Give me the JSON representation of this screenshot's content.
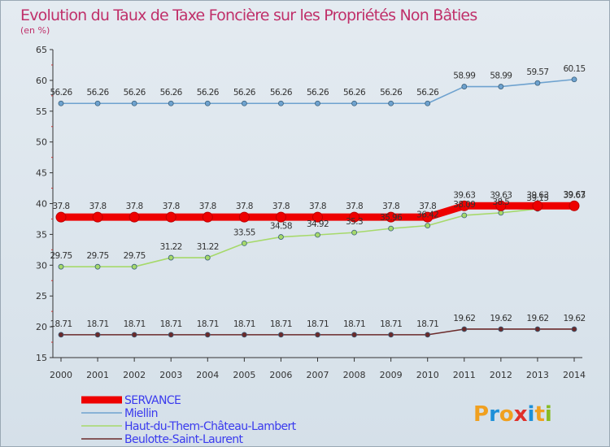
{
  "chart_data": {
    "type": "line",
    "title": "Evolution du Taux de Taxe Foncière sur les Propriétés Non Bâties",
    "subtitle": "(en %)",
    "xlabel": "",
    "ylabel": "",
    "ylim": [
      15,
      65
    ],
    "yticks": [
      15,
      20,
      25,
      30,
      35,
      40,
      45,
      50,
      55,
      60,
      65
    ],
    "grid": false,
    "legend_position": "bottom-left",
    "x": [
      "2000",
      "2001",
      "2002",
      "2003",
      "2004",
      "2005",
      "2006",
      "2007",
      "2008",
      "2009",
      "2010",
      "2011",
      "2012",
      "2013",
      "2014"
    ],
    "series": [
      {
        "name": "Miellin",
        "color": "#6ea2cf",
        "values": [
          56.26,
          56.26,
          56.26,
          56.26,
          56.26,
          56.26,
          56.26,
          56.26,
          56.26,
          56.26,
          56.26,
          58.99,
          58.99,
          59.57,
          60.15
        ],
        "labels": [
          "56.26",
          "56.26",
          "56.26",
          "56.26",
          "56.26",
          "56.26",
          "56.26",
          "56.26",
          "56.26",
          "56.26",
          "56.26",
          "58.99",
          "58.99",
          "59.57",
          "60.15"
        ]
      },
      {
        "name": "Haut-du-Them-Château-Lambert",
        "color": "#a6d96a",
        "values": [
          29.75,
          29.75,
          29.75,
          31.22,
          31.22,
          33.55,
          34.58,
          34.92,
          35.3,
          35.96,
          36.42,
          38.09,
          38.5,
          39.15,
          39.67
        ],
        "labels": [
          "29.75",
          "29.75",
          "29.75",
          "31.22",
          "31.22",
          "33.55",
          "34.58",
          "34.92",
          "35.3",
          "35.96",
          "36.42",
          "38.09",
          "38.5",
          "39.15",
          "39.67"
        ]
      },
      {
        "name": "Beulotte-Saint-Laurent",
        "color": "#6b2a2a",
        "values": [
          18.71,
          18.71,
          18.71,
          18.71,
          18.71,
          18.71,
          18.71,
          18.71,
          18.71,
          18.71,
          18.71,
          19.62,
          19.62,
          19.62,
          19.62
        ],
        "labels": [
          "18.71",
          "18.71",
          "18.71",
          "18.71",
          "18.71",
          "18.71",
          "18.71",
          "18.71",
          "18.71",
          "18.71",
          "18.71",
          "19.62",
          "19.62",
          "19.62",
          "19.62"
        ]
      },
      {
        "name": "SERVANCE",
        "color": "#ee0000",
        "values": [
          37.8,
          37.8,
          37.8,
          37.8,
          37.8,
          37.8,
          37.8,
          37.8,
          37.8,
          37.8,
          37.8,
          39.63,
          39.63,
          39.63,
          39.63
        ],
        "labels": [
          "37.8",
          "37.8",
          "37.8",
          "37.8",
          "37.8",
          "37.8",
          "37.8",
          "37.8",
          "37.8",
          "37.8",
          "37.8",
          "39.63",
          "39.63",
          "39.63",
          "39.63"
        ],
        "highlight": true
      }
    ],
    "legend": [
      {
        "name": "SERVANCE",
        "color": "#ee0000"
      },
      {
        "name": "Miellin",
        "color": "#6ea2cf"
      },
      {
        "name": "Haut-du-Them-Château-Lambert",
        "color": "#a6d96a"
      },
      {
        "name": "Beulotte-Saint-Laurent",
        "color": "#6b2a2a"
      }
    ]
  },
  "logo": {
    "text": "Proxiti"
  },
  "colors": {
    "title": "#c0306a",
    "legend_text": "#3a3aee",
    "axis": "#333333"
  }
}
